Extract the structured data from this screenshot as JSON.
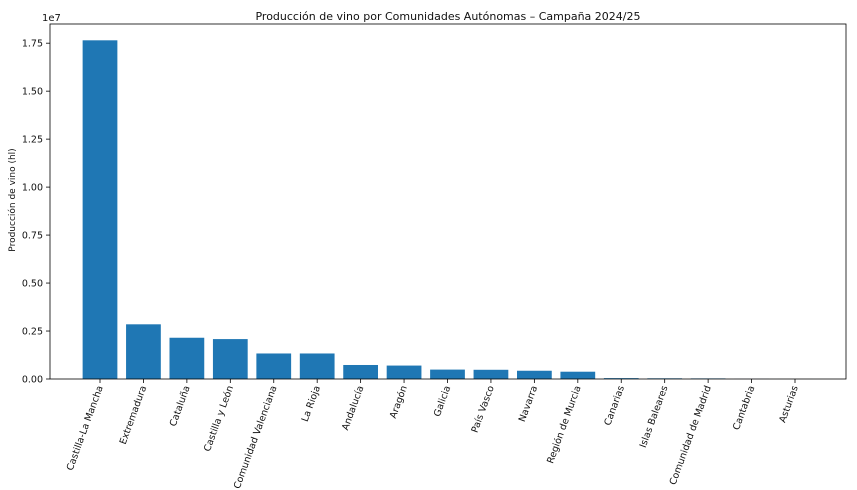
{
  "chart_data": {
    "type": "bar",
    "title": "Producción de vino por Comunidades Autónomas – Campaña 2024/25",
    "xlabel": "",
    "ylabel": "Producción de vino (hl)",
    "offset_label": "1e7",
    "ylim": [
      0,
      18500000
    ],
    "yticks": [
      0,
      2500000,
      5000000,
      7500000,
      10000000,
      12500000,
      15000000,
      17500000
    ],
    "ytick_labels": [
      "0.00",
      "0.25",
      "0.50",
      "0.75",
      "1.00",
      "1.25",
      "1.50",
      "1.75"
    ],
    "grid": false,
    "bar_color": "#1f77b4",
    "categories": [
      "Castilla-La Mancha",
      "Extremadura",
      "Cataluña",
      "Castilla y León",
      "Comunidad Valenciana",
      "La Rioja",
      "Andalucía",
      "Aragón",
      "Galicia",
      "País Vasco",
      "Navarra",
      "Región de Murcia",
      "Canarias",
      "Islas Baleares",
      "Comunidad de Madrid",
      "Cantabria",
      "Asturias"
    ],
    "values": [
      17650000,
      2850000,
      2150000,
      2080000,
      1330000,
      1330000,
      730000,
      700000,
      490000,
      480000,
      430000,
      380000,
      45000,
      35000,
      30000,
      5000,
      2000
    ]
  }
}
